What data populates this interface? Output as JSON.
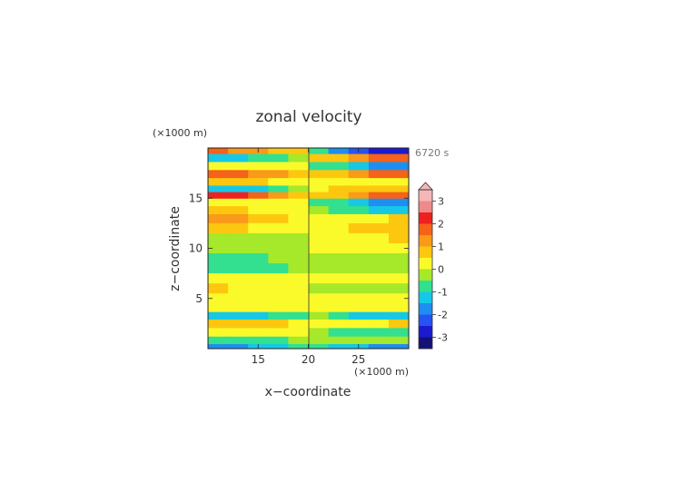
{
  "chart_data": {
    "type": "heatmap",
    "title": "zonal velocity",
    "xlabel": "x−coordinate",
    "ylabel": "z−coordinate",
    "x_unit": "(×1000 m)",
    "y_unit": "(×1000 m)",
    "time_label": "6720 s",
    "xlim": [
      10,
      30
    ],
    "ylim": [
      0,
      20
    ],
    "x_ticks": [
      15,
      20,
      25
    ],
    "y_ticks": [
      5,
      10,
      15
    ],
    "colorbar": {
      "ticks": [
        3,
        2,
        1,
        0,
        -1,
        -2,
        -3
      ],
      "levels": [
        {
          "v": 3.25,
          "color": "#f4b6b6"
        },
        {
          "v": 2.75,
          "color": "#ee8a8a"
        },
        {
          "v": 2.25,
          "color": "#ee2020"
        },
        {
          "v": 1.75,
          "color": "#f5621a"
        },
        {
          "v": 1.25,
          "color": "#f99a18"
        },
        {
          "v": 0.75,
          "color": "#fdc710"
        },
        {
          "v": 0.25,
          "color": "#fafa2a"
        },
        {
          "v": -0.25,
          "color": "#a6e82a"
        },
        {
          "v": -0.75,
          "color": "#32e090"
        },
        {
          "v": -1.25,
          "color": "#16c8e6"
        },
        {
          "v": -1.75,
          "color": "#1e8ef0"
        },
        {
          "v": -2.25,
          "color": "#2654f0"
        },
        {
          "v": -2.75,
          "color": "#1c1ad0"
        },
        {
          "v": -3.25,
          "color": "#141078"
        }
      ]
    },
    "field_bands": [
      {
        "z": 19.8,
        "left": 1.5,
        "right": -2.8
      },
      {
        "z": 19.0,
        "left": -1.2,
        "right": 1.6
      },
      {
        "z": 18.2,
        "left": 0.3,
        "right": -1.7
      },
      {
        "z": 17.4,
        "left": 1.8,
        "right": 1.6
      },
      {
        "z": 16.6,
        "left": 0.7,
        "right": 0.4
      },
      {
        "z": 15.9,
        "left": -1.4,
        "right": 0.9
      },
      {
        "z": 15.3,
        "left": 2.2,
        "right": 1.7
      },
      {
        "z": 14.6,
        "left": 0.4,
        "right": -1.6
      },
      {
        "z": 13.8,
        "left": 0.6,
        "right": -1.1
      },
      {
        "z": 13.0,
        "left": 1.2,
        "right": 0.5
      },
      {
        "z": 12.0,
        "left": 0.6,
        "right": 0.7
      },
      {
        "z": 11.0,
        "left": -0.2,
        "right": 0.5
      },
      {
        "z": 10.0,
        "left": -0.3,
        "right": 0.3
      },
      {
        "z": 9.0,
        "left": -0.8,
        "right": -0.4
      },
      {
        "z": 8.0,
        "left": -1.0,
        "right": -0.2
      },
      {
        "z": 7.0,
        "left": 0.3,
        "right": 0.4
      },
      {
        "z": 6.0,
        "left": 0.5,
        "right": -0.1
      },
      {
        "z": 5.0,
        "left": 0.2,
        "right": 0.1
      },
      {
        "z": 4.0,
        "left": 0.4,
        "right": 0.3
      },
      {
        "z": 3.3,
        "left": -1.5,
        "right": -1.3
      },
      {
        "z": 2.5,
        "left": 0.9,
        "right": 0.5
      },
      {
        "z": 1.6,
        "left": 0.2,
        "right": -0.9
      },
      {
        "z": 0.8,
        "left": -0.9,
        "right": -0.4
      },
      {
        "z": 0.1,
        "left": -1.8,
        "right": -1.8
      }
    ],
    "grid": false,
    "legend": "colorbar right"
  }
}
